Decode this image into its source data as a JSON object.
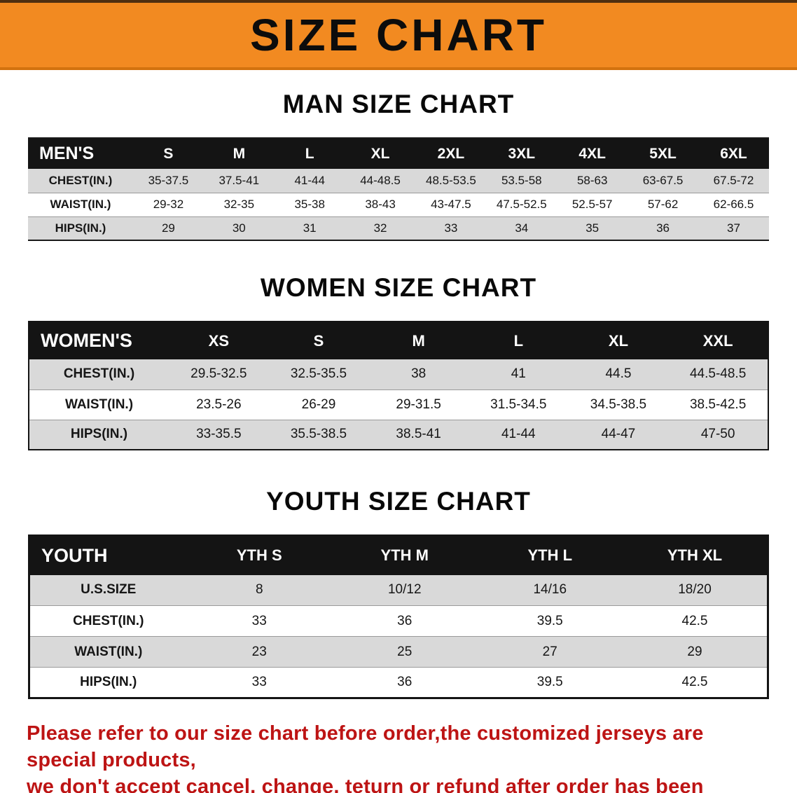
{
  "colors": {
    "banner_bg": "#f28a21",
    "header_bg": "#141414",
    "row_stripe": "#d9d9d9",
    "disclaimer_red": "#bd1414"
  },
  "banner": {
    "title": "SIZE CHART"
  },
  "men": {
    "heading": "MAN SIZE CHART",
    "header": [
      "MEN'S",
      "S",
      "M",
      "L",
      "XL",
      "2XL",
      "3XL",
      "4XL",
      "5XL",
      "6XL"
    ],
    "rows": [
      [
        "CHEST(IN.)",
        "35-37.5",
        "37.5-41",
        "41-44",
        "44-48.5",
        "48.5-53.5",
        "53.5-58",
        "58-63",
        "63-67.5",
        "67.5-72"
      ],
      [
        "WAIST(IN.)",
        "29-32",
        "32-35",
        "35-38",
        "38-43",
        "43-47.5",
        "47.5-52.5",
        "52.5-57",
        "57-62",
        "62-66.5"
      ],
      [
        "HIPS(IN.)",
        "29",
        "30",
        "31",
        "32",
        "33",
        "34",
        "35",
        "36",
        "37"
      ]
    ]
  },
  "women": {
    "heading": "WOMEN SIZE CHART",
    "header": [
      "WOMEN'S",
      "XS",
      "S",
      "M",
      "L",
      "XL",
      "XXL"
    ],
    "rows": [
      [
        "CHEST(IN.)",
        "29.5-32.5",
        "32.5-35.5",
        "38",
        "41",
        "44.5",
        "44.5-48.5"
      ],
      [
        "WAIST(IN.)",
        "23.5-26",
        "26-29",
        "29-31.5",
        "31.5-34.5",
        "34.5-38.5",
        "38.5-42.5"
      ],
      [
        "HIPS(IN.)",
        "33-35.5",
        "35.5-38.5",
        "38.5-41",
        "41-44",
        "44-47",
        "47-50"
      ]
    ]
  },
  "youth": {
    "heading": "YOUTH SIZE CHART",
    "header": [
      "YOUTH",
      "YTH S",
      "YTH M",
      "YTH L",
      "YTH XL"
    ],
    "rows": [
      [
        "U.S.SIZE",
        "8",
        "10/12",
        "14/16",
        "18/20"
      ],
      [
        "CHEST(IN.)",
        "33",
        "36",
        "39.5",
        "42.5"
      ],
      [
        "WAIST(IN.)",
        "23",
        "25",
        "27",
        "29"
      ],
      [
        "HIPS(IN.)",
        "33",
        "36",
        "39.5",
        "42.5"
      ]
    ]
  },
  "disclaimer": {
    "line1": "Please refer to our size chart before order,the customized jerseys are special products,",
    "line2": "we don't accept cancel, change, teturn or refund after order has been placed!"
  }
}
